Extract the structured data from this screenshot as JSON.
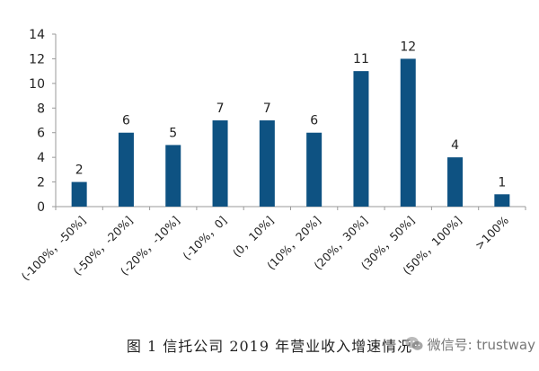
{
  "chart_data": {
    "type": "bar",
    "categories": [
      "(-100%，-50%]",
      "(-50%，-20%]",
      "(-20%，-10%]",
      "(-10%，0]",
      "(0，10%]",
      "(10%，20%]",
      "(20%，30%]",
      "(30%，50%]",
      "(50%，100%]",
      ">100%"
    ],
    "values": [
      2,
      6,
      5,
      7,
      7,
      6,
      11,
      12,
      4,
      1
    ],
    "data_labels": [
      "2",
      "6",
      "5",
      "7",
      "7",
      "6",
      "11",
      "12",
      "4",
      "1"
    ],
    "ylim": [
      0,
      14
    ],
    "yticks": [
      0,
      2,
      4,
      6,
      8,
      10,
      12,
      14
    ],
    "grid": false,
    "legend": "none",
    "bar_color": "#0E5282"
  },
  "caption": "图 1  信托公司 2019 年营业收入增速情况",
  "watermark": {
    "icon": "wechat-icon",
    "text": "微信号: trustway"
  }
}
